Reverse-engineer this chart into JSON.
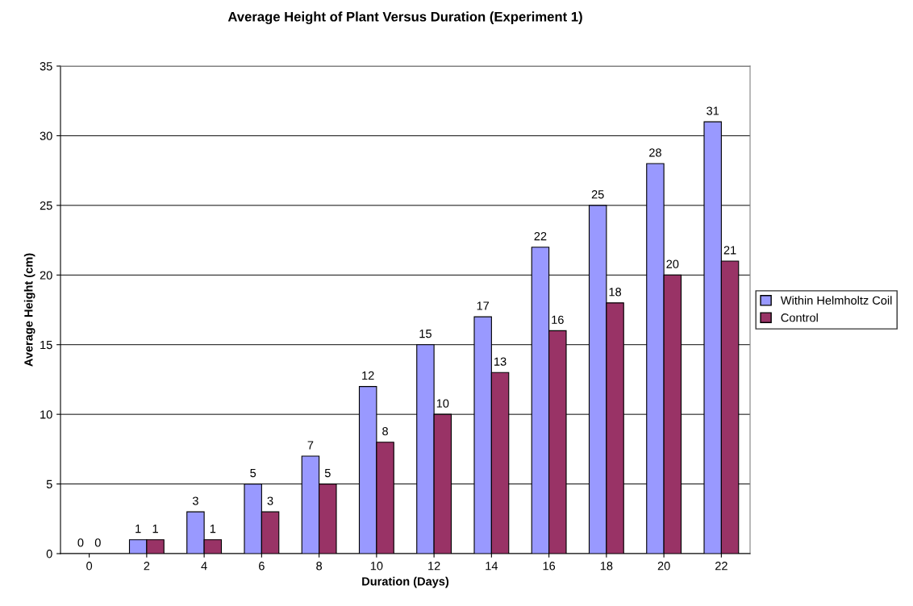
{
  "chart_data": {
    "type": "bar",
    "title": "Average Height of Plant Versus Duration (Experiment 1)",
    "xlabel": "Duration (Days)",
    "ylabel": "Average Height (cm)",
    "categories": [
      "0",
      "2",
      "4",
      "6",
      "8",
      "10",
      "12",
      "14",
      "16",
      "18",
      "20",
      "22"
    ],
    "series": [
      {
        "name": "Within Helmholtz Coil",
        "color": "#9999ff",
        "values": [
          0,
          1,
          3,
          5,
          7,
          12,
          15,
          17,
          22,
          25,
          28,
          31
        ]
      },
      {
        "name": "Control",
        "color": "#993366",
        "values": [
          0,
          1,
          1,
          3,
          5,
          8,
          10,
          13,
          16,
          18,
          20,
          21
        ]
      }
    ],
    "ylim": [
      0,
      35
    ],
    "yticks": [
      0,
      5,
      10,
      15,
      20,
      25,
      30,
      35
    ],
    "grid": "y",
    "legend": "right",
    "data_labels": true
  }
}
